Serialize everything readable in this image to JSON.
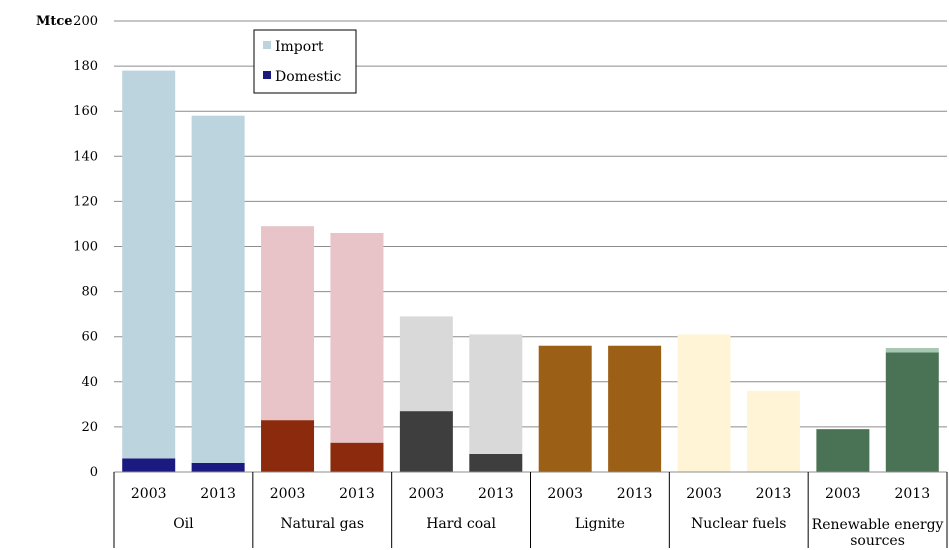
{
  "chart_data": {
    "type": "bar",
    "stacked": true,
    "unit_label": "Mtce",
    "ylim": [
      0,
      200
    ],
    "yticks": [
      0,
      20,
      40,
      60,
      80,
      100,
      120,
      140,
      160,
      180,
      200
    ],
    "grid": true,
    "legend_placement": "top-left",
    "groups": [
      "Oil",
      "Natural gas",
      "Hard coal",
      "Lignite",
      "Nuclear fuels",
      "Renewable energy sources"
    ],
    "years": [
      "2003",
      "2013"
    ],
    "series": [
      {
        "name": "Domestic",
        "values": [
          6,
          4,
          23,
          13,
          27,
          8,
          56,
          56,
          0,
          0,
          19,
          53
        ]
      },
      {
        "name": "Import",
        "values": [
          172,
          154,
          86,
          93,
          42,
          53,
          0,
          0,
          61,
          36,
          0,
          2
        ]
      }
    ],
    "colors": {
      "groups": [
        {
          "domestic": "#1a1a80",
          "import": "#bcd4de"
        },
        {
          "domestic": "#8b2a0c",
          "import": "#e8c3c8"
        },
        {
          "domestic": "#3e3e3e",
          "import": "#d9d9d9"
        },
        {
          "domestic": "#9b5f16",
          "import": "#9b5f16"
        },
        {
          "domestic": "#fff5d6",
          "import": "#fff5d6"
        },
        {
          "domestic": "#4a7355",
          "import": "#a8c8b4"
        }
      ],
      "legend_import": "#bcd4de",
      "legend_domestic": "#1a1a80",
      "grid": "#8c8c8c"
    }
  }
}
